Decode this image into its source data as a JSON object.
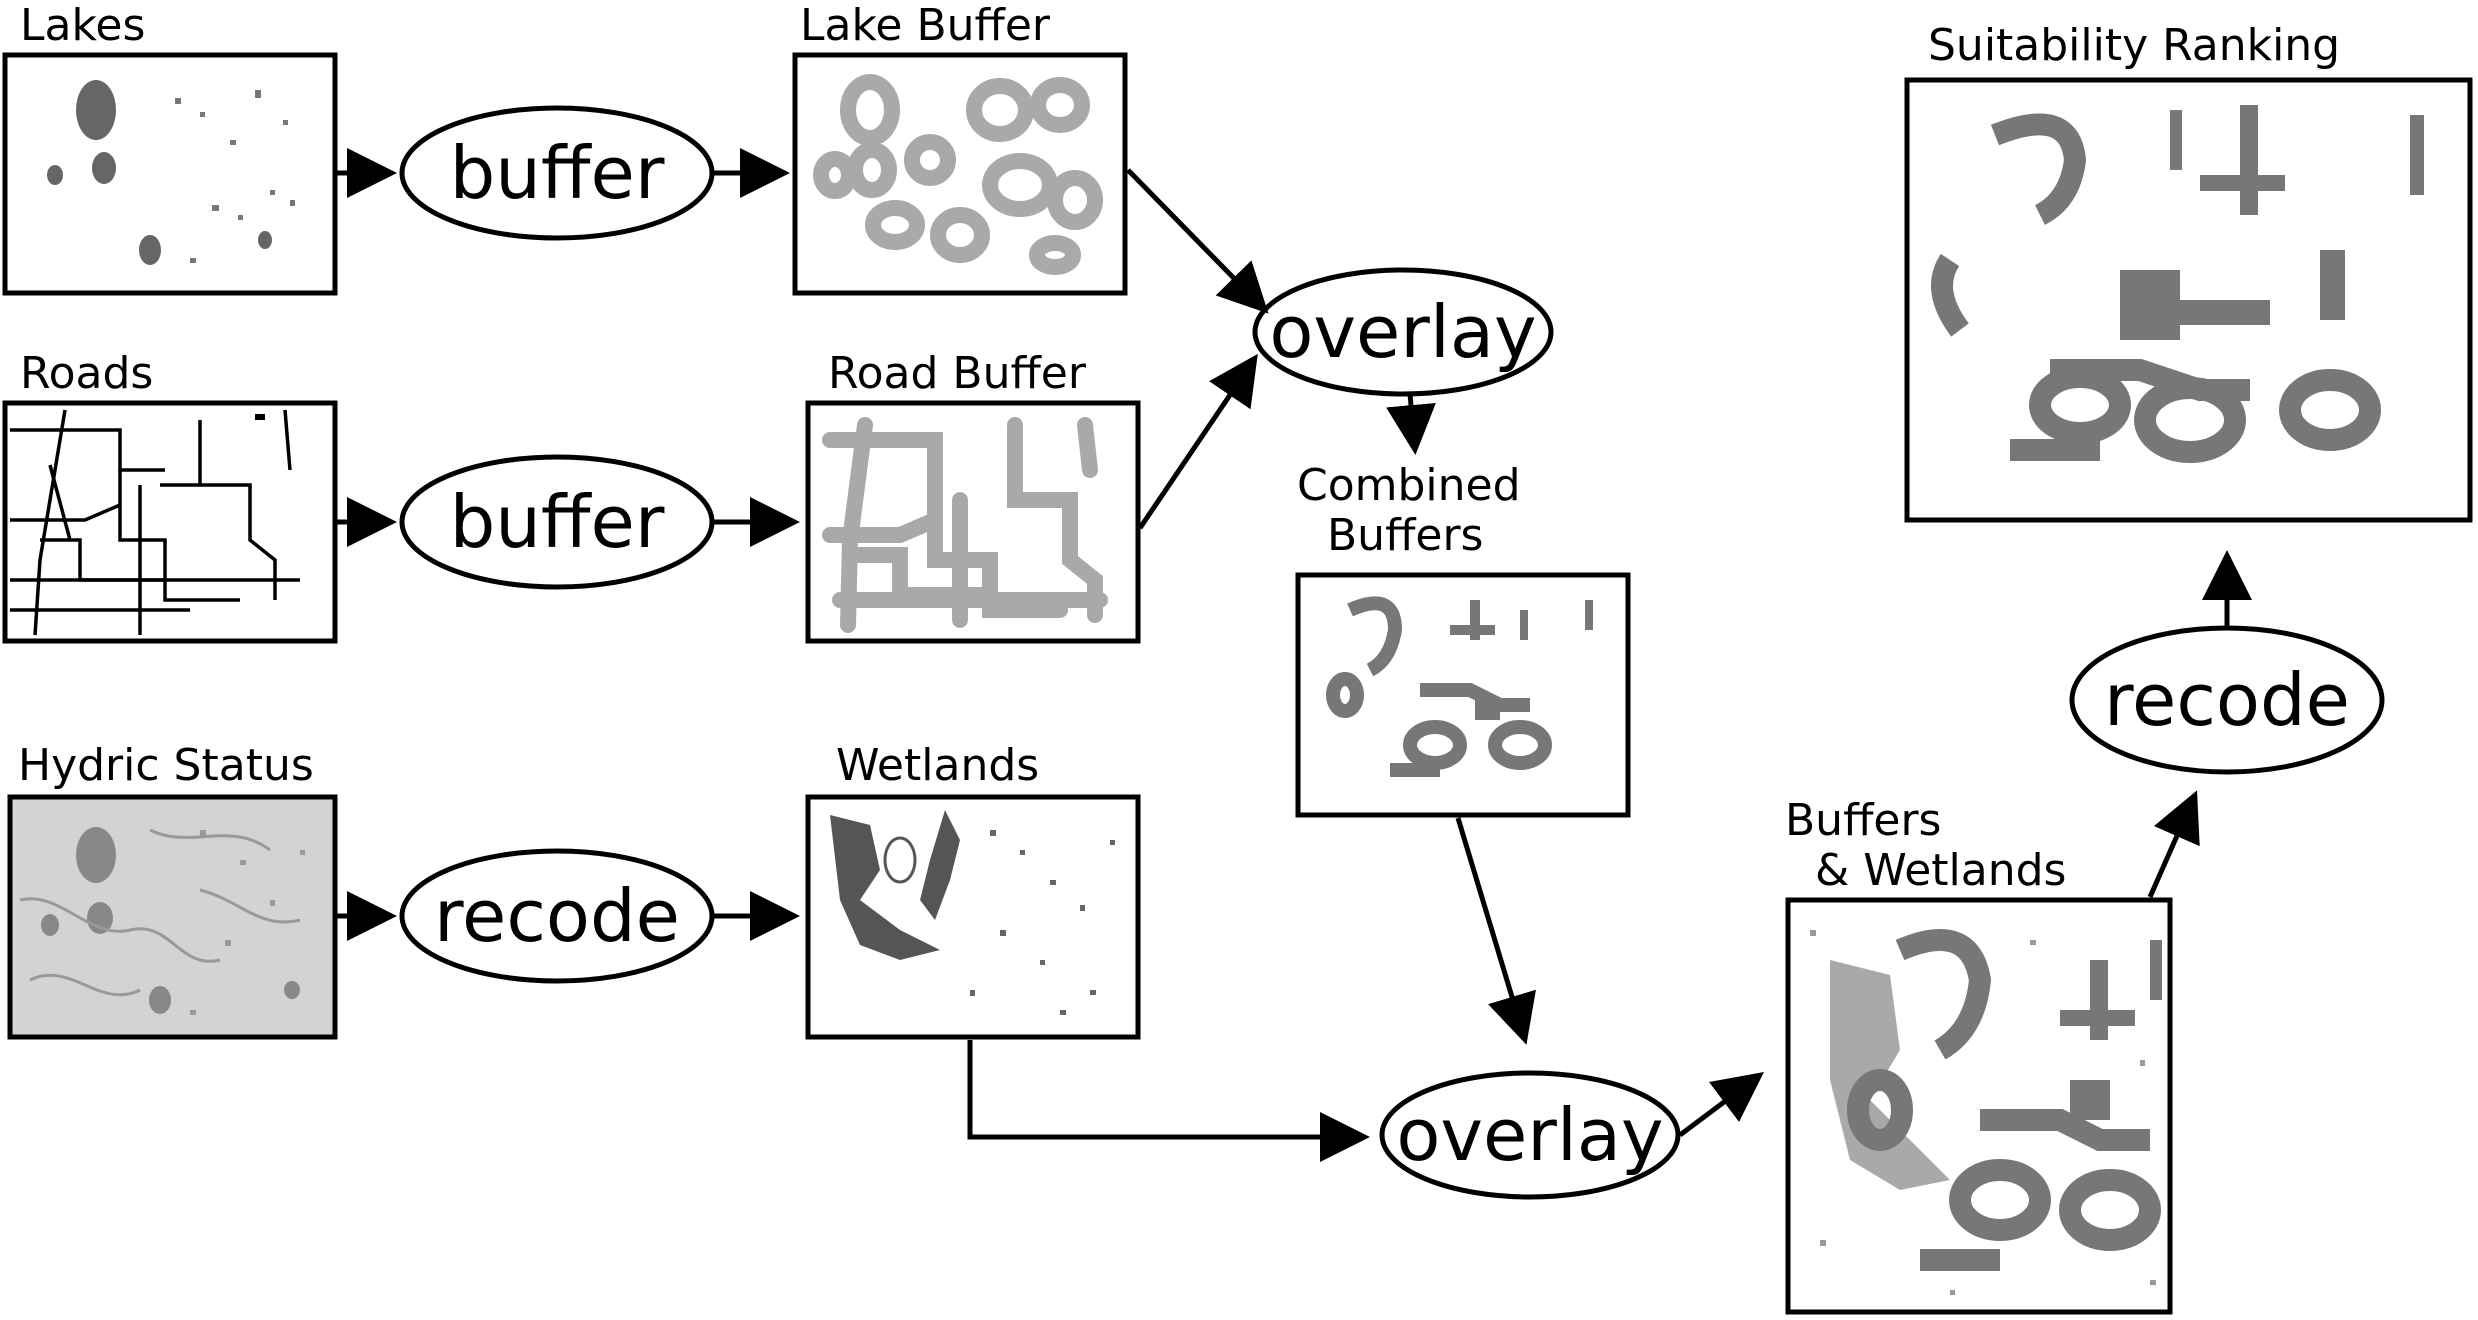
{
  "diagram": {
    "labels": {
      "lakes": "Lakes",
      "lake_buffer": "Lake Buffer",
      "roads": "Roads",
      "road_buffer": "Road Buffer",
      "hydric_status": "Hydric Status",
      "wetlands": "Wetlands",
      "combined_buffers_1": "Combined",
      "combined_buffers_2": "Buffers",
      "buffers_wetlands_1": "Buffers",
      "buffers_wetlands_2": "& Wetlands",
      "suitability_ranking": "Suitability Ranking"
    },
    "operations": {
      "buffer_lakes": "buffer",
      "buffer_roads": "buffer",
      "recode_hydric": "recode",
      "overlay_buffers": "overlay",
      "overlay_wetlands": "overlay",
      "recode_final": "recode"
    },
    "colors": {
      "stroke": "#000000",
      "lake_fill": "#666666",
      "buffer_fill": "#a9a9a9",
      "hydric_bg": "#d3d3d3",
      "wetland_fill": "#555555",
      "combined_fill": "#777777"
    }
  }
}
